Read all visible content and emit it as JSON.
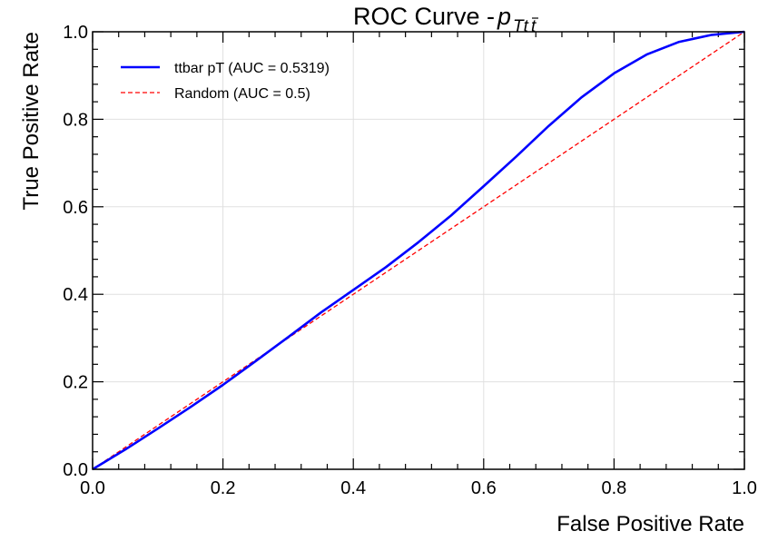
{
  "chart_data": {
    "type": "line",
    "title": "ROC Curve - ",
    "title_math": {
      "base": "p",
      "sub": "Tt",
      "sub_bar": "t"
    },
    "xlabel": "False Positive Rate",
    "ylabel": "True Positive Rate",
    "xlim": [
      0.0,
      1.0
    ],
    "ylim": [
      0.0,
      1.0
    ],
    "xticks": [
      "0.0",
      "0.2",
      "0.4",
      "0.6",
      "0.8",
      "1.0"
    ],
    "yticks": [
      "0.0",
      "0.2",
      "0.4",
      "0.6",
      "0.8",
      "1.0"
    ],
    "grid": true,
    "legend_position": "top-left",
    "series": [
      {
        "name": "ttbar pT (AUC = 0.5319)",
        "color": "#0000ff",
        "style": "solid",
        "x": [
          0.0,
          0.05,
          0.1,
          0.15,
          0.2,
          0.25,
          0.3,
          0.35,
          0.4,
          0.45,
          0.5,
          0.55,
          0.6,
          0.65,
          0.7,
          0.75,
          0.8,
          0.85,
          0.9,
          0.95,
          1.0
        ],
        "y": [
          0.0,
          0.045,
          0.093,
          0.142,
          0.193,
          0.247,
          0.302,
          0.358,
          0.41,
          0.462,
          0.519,
          0.58,
          0.647,
          0.715,
          0.785,
          0.85,
          0.905,
          0.948,
          0.977,
          0.993,
          1.0
        ]
      },
      {
        "name": "Random (AUC = 0.5)",
        "color": "#ff0000",
        "style": "dashed",
        "x": [
          0.0,
          1.0
        ],
        "y": [
          0.0,
          1.0
        ]
      }
    ]
  }
}
